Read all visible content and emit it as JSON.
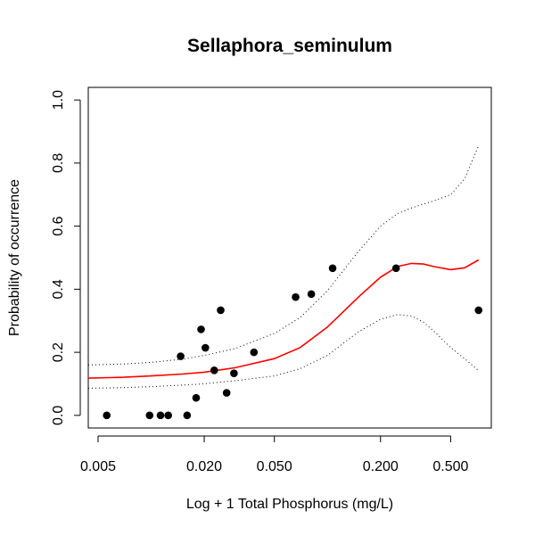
{
  "chart_data": {
    "type": "scatter",
    "title": "Sellaphora_seminulum",
    "xlabel": "Log + 1 Total Phosphorus (mg/L)",
    "ylabel": "Probability of occurrence",
    "x_scale": "log",
    "xlim": [
      0.0044,
      0.85
    ],
    "ylim": [
      -0.04,
      1.04
    ],
    "x_ticks": [
      0.005,
      0.02,
      0.05,
      0.2,
      0.5
    ],
    "x_tick_labels": [
      "0.005",
      "0.020",
      "0.050",
      "0.200",
      "0.500"
    ],
    "y_ticks": [
      0.0,
      0.2,
      0.4,
      0.6,
      0.8,
      1.0
    ],
    "y_tick_labels": [
      "0.0",
      "0.2",
      "0.4",
      "0.6",
      "0.8",
      "1.0"
    ],
    "grid": false,
    "points": [
      {
        "x": 0.0056,
        "y": 0.0
      },
      {
        "x": 0.0098,
        "y": 0.0
      },
      {
        "x": 0.0113,
        "y": 0.0
      },
      {
        "x": 0.0125,
        "y": 0.0
      },
      {
        "x": 0.0147,
        "y": 0.1875
      },
      {
        "x": 0.016,
        "y": 0.0
      },
      {
        "x": 0.018,
        "y": 0.0556
      },
      {
        "x": 0.0192,
        "y": 0.2727
      },
      {
        "x": 0.0203,
        "y": 0.2143
      },
      {
        "x": 0.0228,
        "y": 0.1429
      },
      {
        "x": 0.0248,
        "y": 0.3333
      },
      {
        "x": 0.0268,
        "y": 0.0714
      },
      {
        "x": 0.0295,
        "y": 0.1333
      },
      {
        "x": 0.0383,
        "y": 0.2
      },
      {
        "x": 0.066,
        "y": 0.375
      },
      {
        "x": 0.081,
        "y": 0.3846
      },
      {
        "x": 0.107,
        "y": 0.4667
      },
      {
        "x": 0.245,
        "y": 0.4667
      },
      {
        "x": 0.72,
        "y": 0.3333
      }
    ],
    "series": [
      {
        "style": "solid",
        "color": "#ff0000",
        "x": [
          0.0044,
          0.007,
          0.01,
          0.015,
          0.02,
          0.03,
          0.05,
          0.07,
          0.1,
          0.15,
          0.2,
          0.25,
          0.3,
          0.35,
          0.4,
          0.5,
          0.6,
          0.72
        ],
        "y": [
          0.118,
          0.121,
          0.125,
          0.131,
          0.137,
          0.151,
          0.18,
          0.215,
          0.28,
          0.375,
          0.438,
          0.472,
          0.482,
          0.48,
          0.472,
          0.462,
          0.468,
          0.493
        ]
      },
      {
        "style": "dotted",
        "color": "#000000",
        "x": [
          0.0044,
          0.007,
          0.01,
          0.015,
          0.02,
          0.03,
          0.05,
          0.07,
          0.1,
          0.15,
          0.2,
          0.25,
          0.3,
          0.4,
          0.5,
          0.6,
          0.72
        ],
        "y": [
          0.16,
          0.163,
          0.168,
          0.178,
          0.19,
          0.212,
          0.26,
          0.31,
          0.395,
          0.52,
          0.6,
          0.64,
          0.658,
          0.68,
          0.7,
          0.75,
          0.855
        ]
      },
      {
        "style": "dotted",
        "color": "#000000",
        "x": [
          0.0044,
          0.007,
          0.01,
          0.015,
          0.02,
          0.03,
          0.05,
          0.07,
          0.1,
          0.15,
          0.2,
          0.25,
          0.3,
          0.35,
          0.4,
          0.5,
          0.6,
          0.72
        ],
        "y": [
          0.086,
          0.088,
          0.091,
          0.096,
          0.1,
          0.11,
          0.125,
          0.148,
          0.19,
          0.265,
          0.305,
          0.32,
          0.315,
          0.296,
          0.268,
          0.215,
          0.18,
          0.142
        ]
      }
    ]
  }
}
